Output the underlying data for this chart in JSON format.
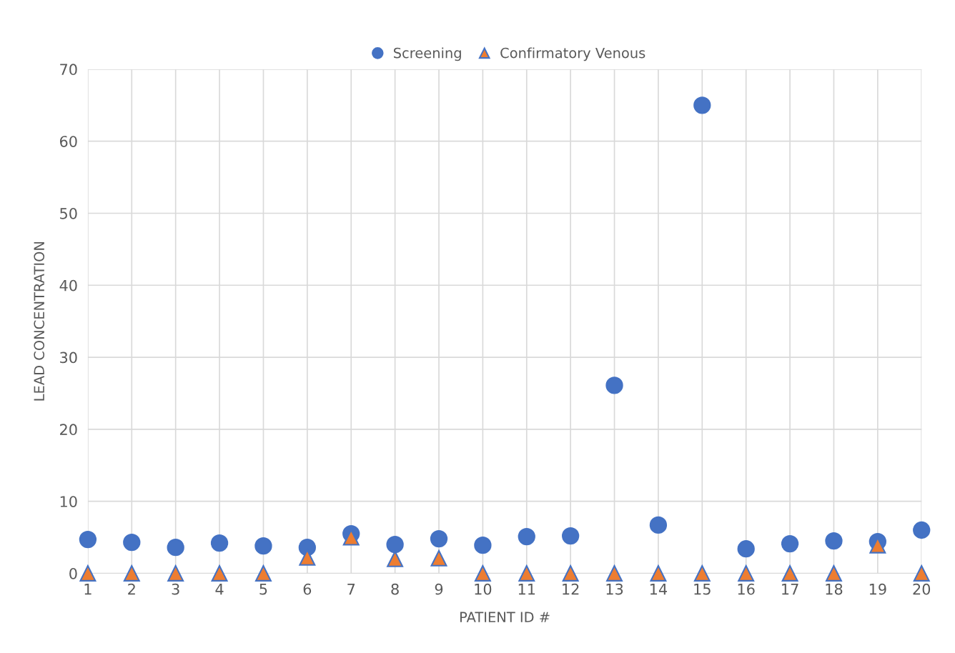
{
  "chart_data": {
    "type": "scatter",
    "xlabel": "PATIENT ID #",
    "ylabel": "LEAD CONCENTRATION",
    "x": [
      1,
      2,
      3,
      4,
      5,
      6,
      7,
      8,
      9,
      10,
      11,
      12,
      13,
      14,
      15,
      16,
      17,
      18,
      19,
      20
    ],
    "series": [
      {
        "name": "Screening",
        "color": "#4472c4",
        "marker": "circle",
        "values": [
          4.7,
          4.3,
          3.6,
          4.2,
          3.8,
          3.6,
          5.5,
          4.0,
          4.8,
          3.9,
          5.1,
          5.2,
          26.1,
          6.7,
          65.0,
          3.4,
          4.1,
          4.5,
          4.4,
          6.0
        ]
      },
      {
        "name": "Confirmatory Venous",
        "color": "#ed7d31",
        "marker": "triangle",
        "values": [
          0,
          0,
          0,
          0,
          0,
          2.2,
          5.0,
          2.0,
          2.1,
          0,
          0,
          0,
          0,
          0,
          0,
          0,
          0,
          0,
          3.9,
          0
        ]
      }
    ],
    "xlim": [
      1,
      20
    ],
    "xticks": [
      1,
      2,
      3,
      4,
      5,
      6,
      7,
      8,
      9,
      10,
      11,
      12,
      13,
      14,
      15,
      16,
      17,
      18,
      19,
      20
    ],
    "ylim": [
      0,
      70
    ],
    "yticks": [
      0,
      10,
      20,
      30,
      40,
      50,
      60,
      70
    ],
    "grid": true,
    "legend": "top"
  }
}
